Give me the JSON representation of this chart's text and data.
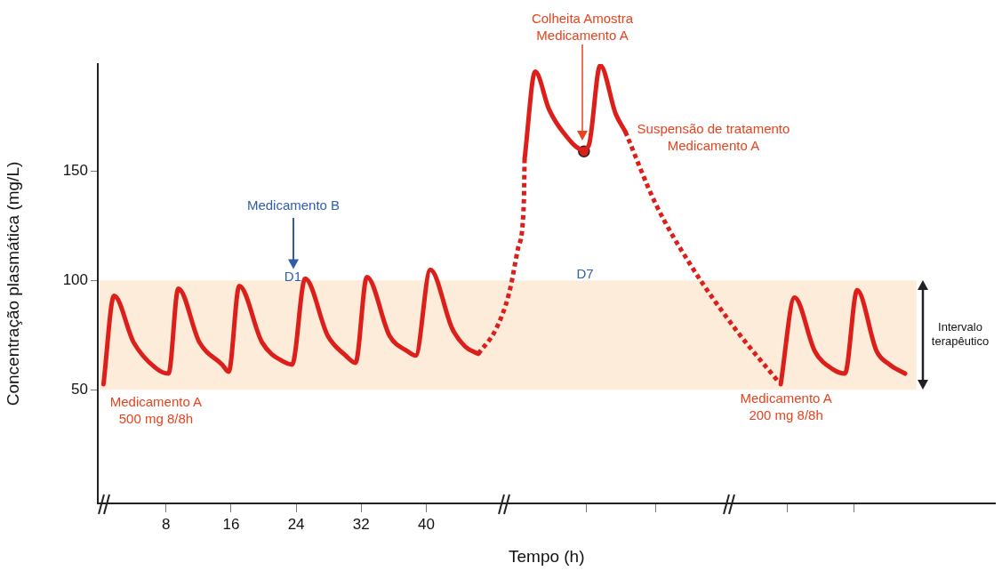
{
  "chart_data": {
    "type": "line",
    "xlabel": "Tempo (h)",
    "ylabel": "Concentração plasmática (mg/L)",
    "xlim": [
      -0.4,
      110
    ],
    "ylim": [
      -2,
      199
    ],
    "xticks": [
      8,
      16,
      24,
      32,
      40,
      {
        "value": 59.7,
        "label": null
      },
      {
        "value": 68.2,
        "label": null
      },
      {
        "value": 84.4,
        "label": null
      },
      {
        "value": 92.6,
        "label": null
      }
    ],
    "yticks": [
      50,
      100,
      150
    ],
    "grid": false,
    "legend": false,
    "marker": "none",
    "bands": [
      {
        "axis": "y",
        "from": 50,
        "to": 100,
        "label": "Intervalo\nterapêutico",
        "color": "#fcecd9"
      }
    ],
    "series": [
      {
        "color": "#dc1f1a",
        "line_style": "solid",
        "x": [
          0.3,
          1.6,
          4.0,
          6.7,
          8.3,
          9.5,
          12.1,
          14.9,
          15.7,
          17.0,
          19.8,
          22.5,
          23.5,
          25.1,
          27.9,
          30.1,
          31.3,
          32.7,
          35.5,
          37.7,
          38.7,
          40.5,
          43.2,
          44.8,
          46.4
        ],
        "values": [
          52.5,
          93,
          71.7,
          60,
          57.4,
          96.3,
          71.7,
          61.5,
          58.2,
          97.5,
          71.7,
          62.7,
          61.5,
          100.8,
          74.6,
          65.6,
          62.3,
          101.6,
          74.6,
          67.6,
          65.6,
          104.9,
          77.9,
          69.7,
          66.4
        ]
      },
      {
        "color": "#dc1f1a",
        "line_style": "dotted",
        "x": [
          46.4,
          48.6,
          50.2,
          51.3,
          52.0,
          52.1
        ],
        "values": [
          66.4,
          77.9,
          94.3,
          114.8,
          135.2,
          155.7
        ]
      },
      {
        "color": "#dc1f1a",
        "line_style": "solid",
        "x": [
          52.1,
          53.4,
          55.1,
          56.8,
          59.3,
          60.0,
          61.4,
          63.3,
          64.5
        ],
        "values": [
          155.7,
          195.5,
          178.3,
          168,
          159.8,
          161.9,
          198.4,
          176.2,
          168
        ]
      },
      {
        "color": "#dc1f1a",
        "line_style": "dotted",
        "x": [
          64.5,
          68.2,
          72.6,
          78.0,
          83.4
        ],
        "values": [
          168,
          135.2,
          106.6,
          77.9,
          53.3
        ]
      },
      {
        "color": "#dc1f1a",
        "line_style": "solid",
        "x": [
          83.6,
          85.3,
          87.8,
          90.0,
          91.5,
          93.0,
          95.4,
          97.0,
          98.9
        ],
        "values": [
          52.5,
          92.2,
          67.6,
          59.4,
          57.4,
          95.5,
          67.6,
          61.5,
          57.4
        ]
      },
      {
        "type": "scatter",
        "color": "#dc1f1a",
        "marker": "circle",
        "x": [
          59.4
        ],
        "values": [
          159
        ]
      }
    ],
    "annotations": [
      "Medicamento B",
      {
        "text": "D1",
        "x": 23.6,
        "y": 101.6
      },
      "D7",
      "Colheita Amostra\nMedicamento A",
      {
        "text": "Suspensão de tratamento\nMedicamento A",
        "x": 64.5,
        "y": 168
      },
      {
        "text": "Medicamento A\n500 mg 8/8h",
        "x": 0.3,
        "y": 52.5
      },
      {
        "text": "Medicamento A\n200 mg 8/8h",
        "x": 83.6,
        "y": 52.5
      }
    ]
  }
}
